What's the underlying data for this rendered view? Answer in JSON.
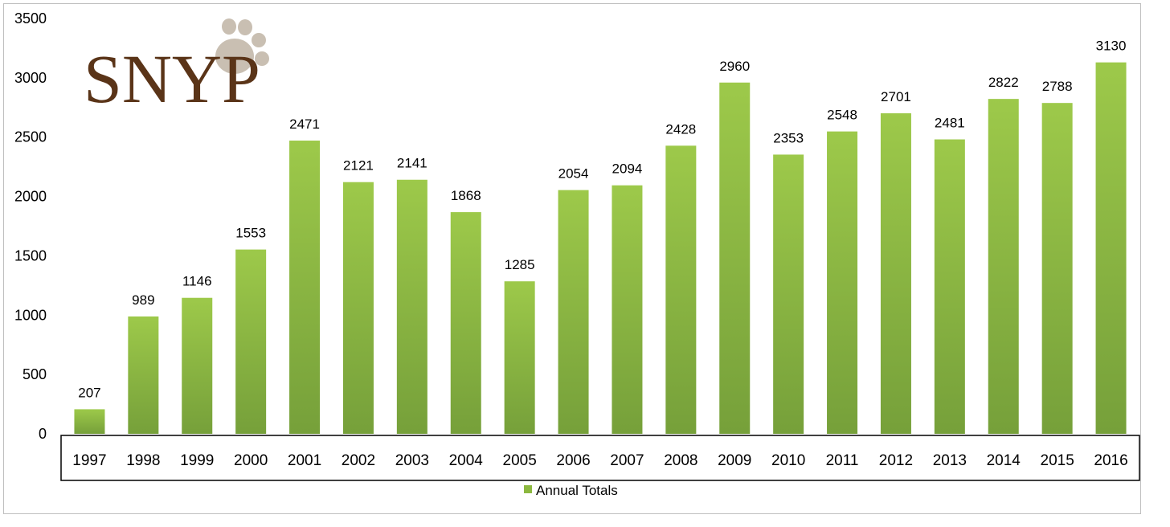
{
  "logo": {
    "text": "SNYP"
  },
  "chart_data": {
    "type": "bar",
    "categories": [
      "1997",
      "1998",
      "1999",
      "2000",
      "2001",
      "2002",
      "2003",
      "2004",
      "2005",
      "2006",
      "2007",
      "2008",
      "2009",
      "2010",
      "2011",
      "2012",
      "2013",
      "2014",
      "2015",
      "2016"
    ],
    "series": [
      {
        "name": "Annual Totals",
        "values": [
          207,
          989,
          1146,
          1553,
          2471,
          2121,
          2141,
          1868,
          1285,
          2054,
          2094,
          2428,
          2960,
          2353,
          2548,
          2701,
          2481,
          2822,
          2788,
          3130
        ]
      }
    ],
    "ylim": [
      0,
      3500
    ],
    "yticks": [
      0,
      500,
      1000,
      1500,
      2000,
      2500,
      3000,
      3500
    ],
    "title": "",
    "xlabel": "",
    "ylabel": "",
    "grid": false,
    "data_labels": true,
    "legend_position": "bottom",
    "bar_color": "#8cb83f"
  }
}
